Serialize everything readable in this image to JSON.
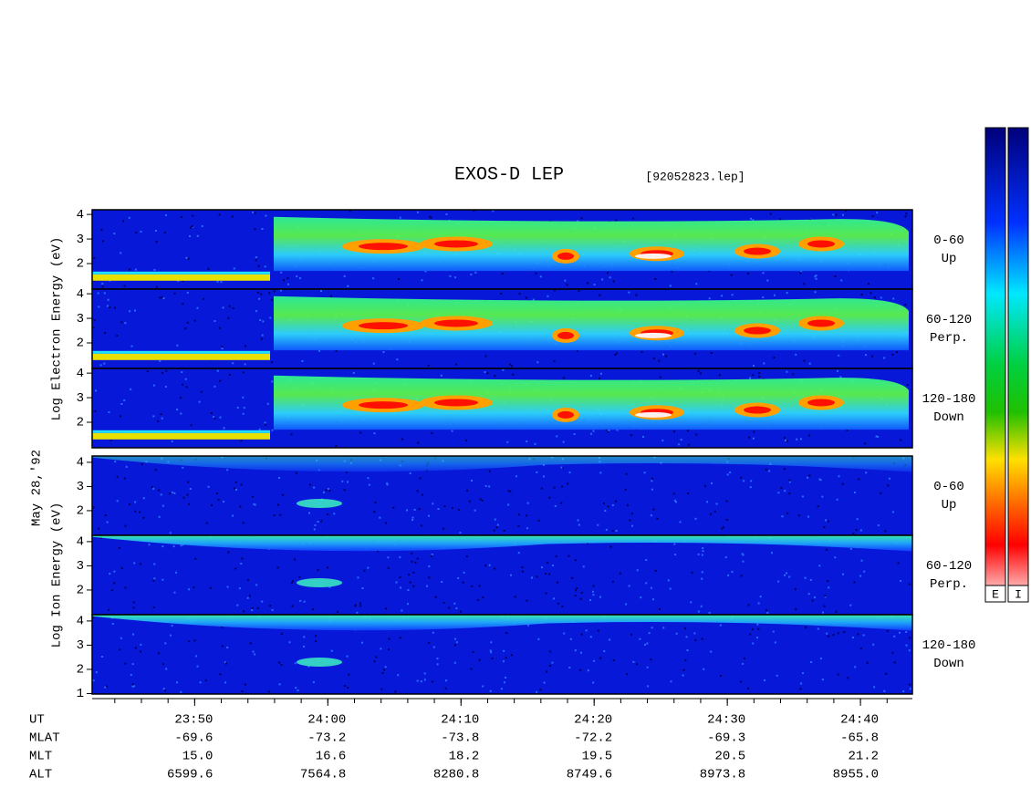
{
  "chart_data": {
    "type": "spectrogram",
    "title": "EXOS-D LEP",
    "subtitle": "[92052823.lep]",
    "date_label": "May 28,'92",
    "groups": [
      {
        "ylabel": "Log Electron Energy (eV)",
        "panels": [
          {
            "label": "0-60",
            "direction": "Up",
            "ylim": [
              0.96,
              4.19
            ],
            "yticks": [
              2,
              3,
              4
            ]
          },
          {
            "label": "60-120",
            "direction": "Perp.",
            "ylim": [
              0.96,
              4.19
            ],
            "yticks": [
              2,
              3,
              4
            ]
          },
          {
            "label": "120-180",
            "direction": "Down",
            "ylim": [
              0.96,
              4.19
            ],
            "yticks": [
              2,
              3,
              4
            ]
          }
        ]
      },
      {
        "ylabel": "Log Ion Energy (eV)",
        "panels": [
          {
            "label": "0-60",
            "direction": "Up",
            "ylim": [
              0.98,
              4.26
            ],
            "yticks": [
              2,
              3,
              4
            ]
          },
          {
            "label": "60-120",
            "direction": "Perp.",
            "ylim": [
              0.98,
              4.26
            ],
            "yticks": [
              2,
              3,
              4
            ]
          },
          {
            "label": "120-180",
            "direction": "Down",
            "ylim": [
              0.98,
              4.26
            ],
            "yticks": [
              1,
              2,
              3,
              4
            ]
          }
        ]
      }
    ],
    "xlim": [
      1422.3,
      1483.9
    ],
    "xticks": [
      {
        "value": 1430,
        "label": "23:50"
      },
      {
        "value": 1440,
        "label": "24:00"
      },
      {
        "value": 1450,
        "label": "24:10"
      },
      {
        "value": 1460,
        "label": "24:20"
      },
      {
        "value": 1470,
        "label": "24:30"
      },
      {
        "value": 1480,
        "label": "24:40"
      }
    ],
    "x_row_name": "UT",
    "rows": [
      {
        "name": "MLAT",
        "values": [
          "-69.6",
          "-73.2",
          "-73.8",
          "-72.2",
          "-69.3",
          "-65.8"
        ]
      },
      {
        "name": "MLT",
        "values": [
          "15.0",
          "16.6",
          "18.2",
          "19.5",
          "20.5",
          "21.2"
        ]
      },
      {
        "name": "ALT",
        "values": [
          "6599.6",
          "7564.8",
          "8280.8",
          "8749.6",
          "8973.8",
          "8955.0"
        ]
      }
    ],
    "colorbars": [
      "E",
      "I"
    ]
  }
}
